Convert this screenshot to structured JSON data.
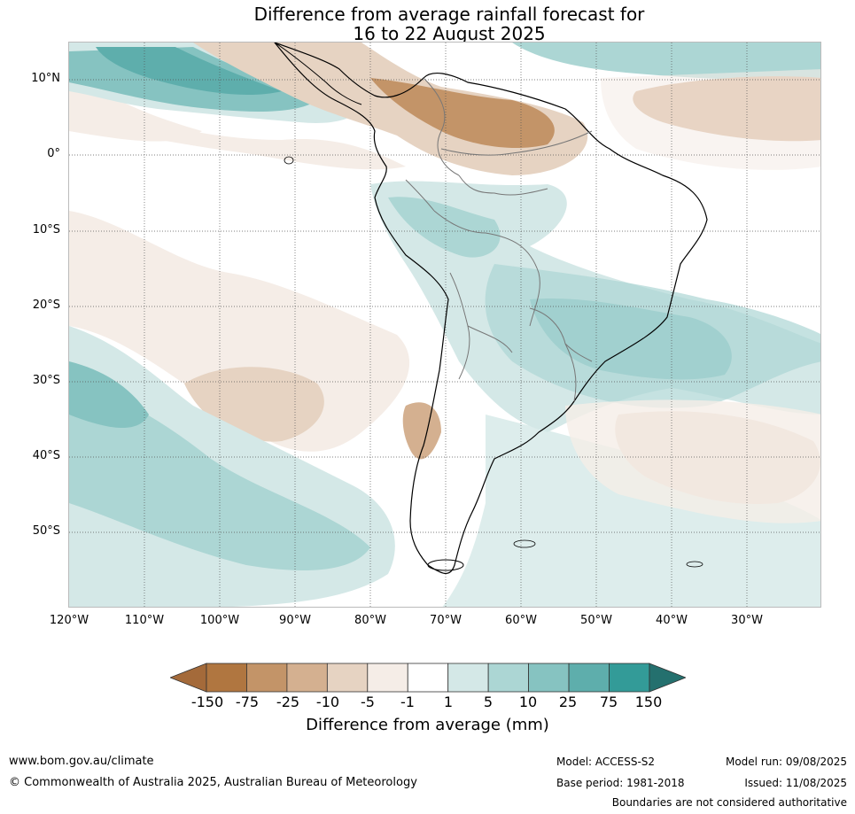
{
  "title": {
    "line1": "Difference from average rainfall forecast for",
    "line2": "16 to 22 August 2025"
  },
  "map": {
    "lat_labels": [
      "10°N",
      "0°",
      "10°S",
      "20°S",
      "30°S",
      "40°S",
      "50°S"
    ],
    "lon_labels": [
      "120°W",
      "110°W",
      "100°W",
      "90°W",
      "80°W",
      "70°W",
      "60°W",
      "50°W",
      "40°W",
      "30°W"
    ],
    "grid": "dotted"
  },
  "colorbar": {
    "label": "Difference from average (mm)",
    "ticks": [
      "-150",
      "-75",
      "-25",
      "-10",
      "-5",
      "-1",
      "1",
      "5",
      "10",
      "25",
      "75",
      "150"
    ],
    "colors": [
      "#a46a3a",
      "#b07640",
      "#c39468",
      "#d4b090",
      "#e6d3c2",
      "#f5ede7",
      "#ffffff",
      "#d4e8e7",
      "#acd6d4",
      "#86c3c1",
      "#5eaeac",
      "#339b98",
      "#24706e"
    ]
  },
  "footer": {
    "url": "www.bom.gov.au/climate",
    "copyright": "© Commonwealth of Australia 2025, Australian Bureau of Meteorology",
    "model": "Model: ACCESS-S2",
    "base_period": "Base period: 1981-2018",
    "model_run": "Model run: 09/08/2025",
    "issued": "Issued: 11/08/2025",
    "disclaimer": "Boundaries are not considered authoritative"
  }
}
